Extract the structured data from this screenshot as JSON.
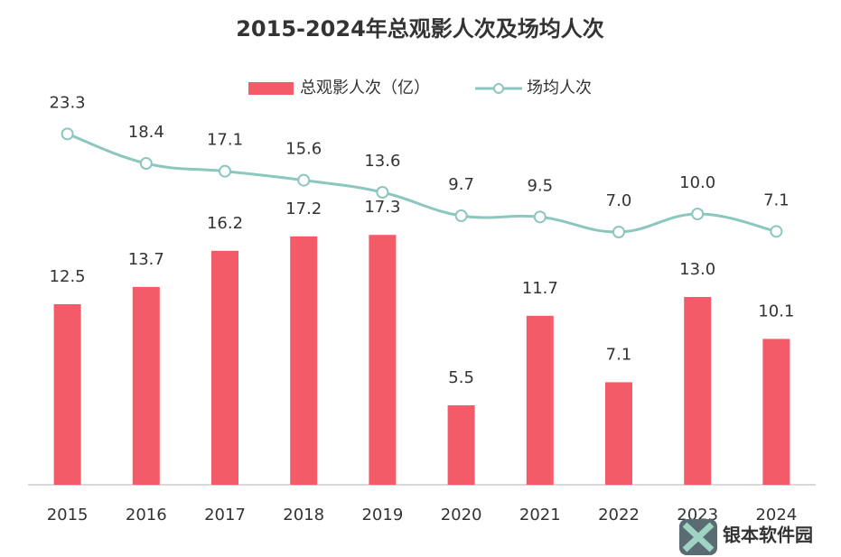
{
  "chart_data": {
    "type": "bar-line",
    "title": "2015-2024年总观影人次及场均人次",
    "categories": [
      "2015",
      "2016",
      "2017",
      "2018",
      "2019",
      "2020",
      "2021",
      "2022",
      "2023",
      "2024"
    ],
    "series": [
      {
        "name": "总观影人次（亿）",
        "type": "bar",
        "color": "#f45b69",
        "values": [
          12.5,
          13.7,
          16.2,
          17.2,
          17.3,
          5.5,
          11.7,
          7.1,
          13.0,
          10.1
        ],
        "value_labels": [
          "12.5",
          "13.7",
          "16.2",
          "17.2",
          "17.3",
          "5.5",
          "11.7",
          "7.1",
          "13.0",
          "10.1"
        ]
      },
      {
        "name": "场均人次",
        "type": "line",
        "axis": "y2",
        "color": "#8cc7bf",
        "values": [
          23.3,
          18.4,
          17.1,
          15.6,
          13.6,
          9.7,
          9.5,
          7.0,
          10.0,
          7.1
        ],
        "value_labels": [
          "23.3",
          "18.4",
          "17.1",
          "15.6",
          "13.6",
          "9.7",
          "9.5",
          "7.0",
          "10.0",
          "7.1"
        ]
      }
    ],
    "ylim": [
      0,
      25
    ],
    "y2lim": [
      -35,
      25
    ],
    "legend": "top",
    "grid": false
  },
  "watermark": "银本软件园"
}
